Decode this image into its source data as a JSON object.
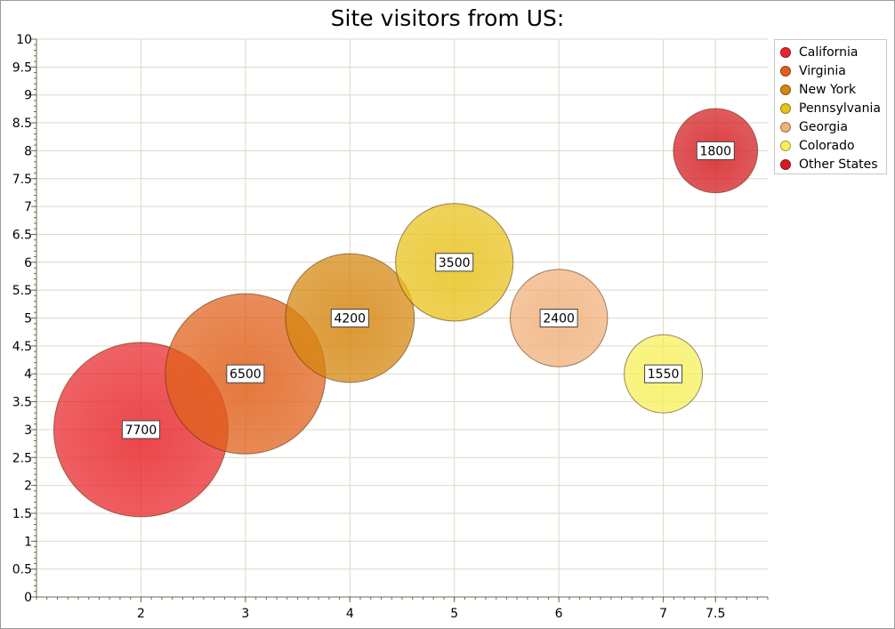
{
  "chart_data": {
    "type": "bubble",
    "title": "Site visitors from US:",
    "xlabel": "",
    "ylabel": "",
    "xlim": [
      1,
      8
    ],
    "ylim": [
      0,
      10
    ],
    "x_ticks": [
      "2",
      "3",
      "4",
      "5",
      "6",
      "7",
      "7.5"
    ],
    "y_ticks": [
      "0",
      "0.5",
      "1",
      "1.5",
      "2",
      "2.5",
      "3",
      "3.5",
      "4",
      "4.5",
      "5",
      "5.5",
      "6",
      "6.5",
      "7",
      "7.5",
      "8",
      "8.5",
      "9",
      "9.5",
      "10"
    ],
    "grid": true,
    "legend_position": "top-right",
    "series": [
      {
        "name": "California",
        "x": 2,
        "y": 3,
        "size": 7700,
        "label": "7700",
        "color": "#e8262a"
      },
      {
        "name": "Virginia",
        "x": 3,
        "y": 4,
        "size": 6500,
        "label": "6500",
        "color": "#e0601a"
      },
      {
        "name": "New York",
        "x": 4,
        "y": 5,
        "size": 4200,
        "label": "4200",
        "color": "#d5860f"
      },
      {
        "name": "Pennsylvania",
        "x": 5,
        "y": 6,
        "size": 3500,
        "label": "3500",
        "color": "#e8c21c"
      },
      {
        "name": "Georgia",
        "x": 6,
        "y": 5,
        "size": 2400,
        "label": "2400",
        "color": "#f0b07a"
      },
      {
        "name": "Colorado",
        "x": 7,
        "y": 4,
        "size": 1550,
        "label": "1550",
        "color": "#f6f05a"
      },
      {
        "name": "Other States",
        "x": 7.5,
        "y": 8,
        "size": 1800,
        "label": "1800",
        "color": "#d41c20"
      }
    ]
  }
}
